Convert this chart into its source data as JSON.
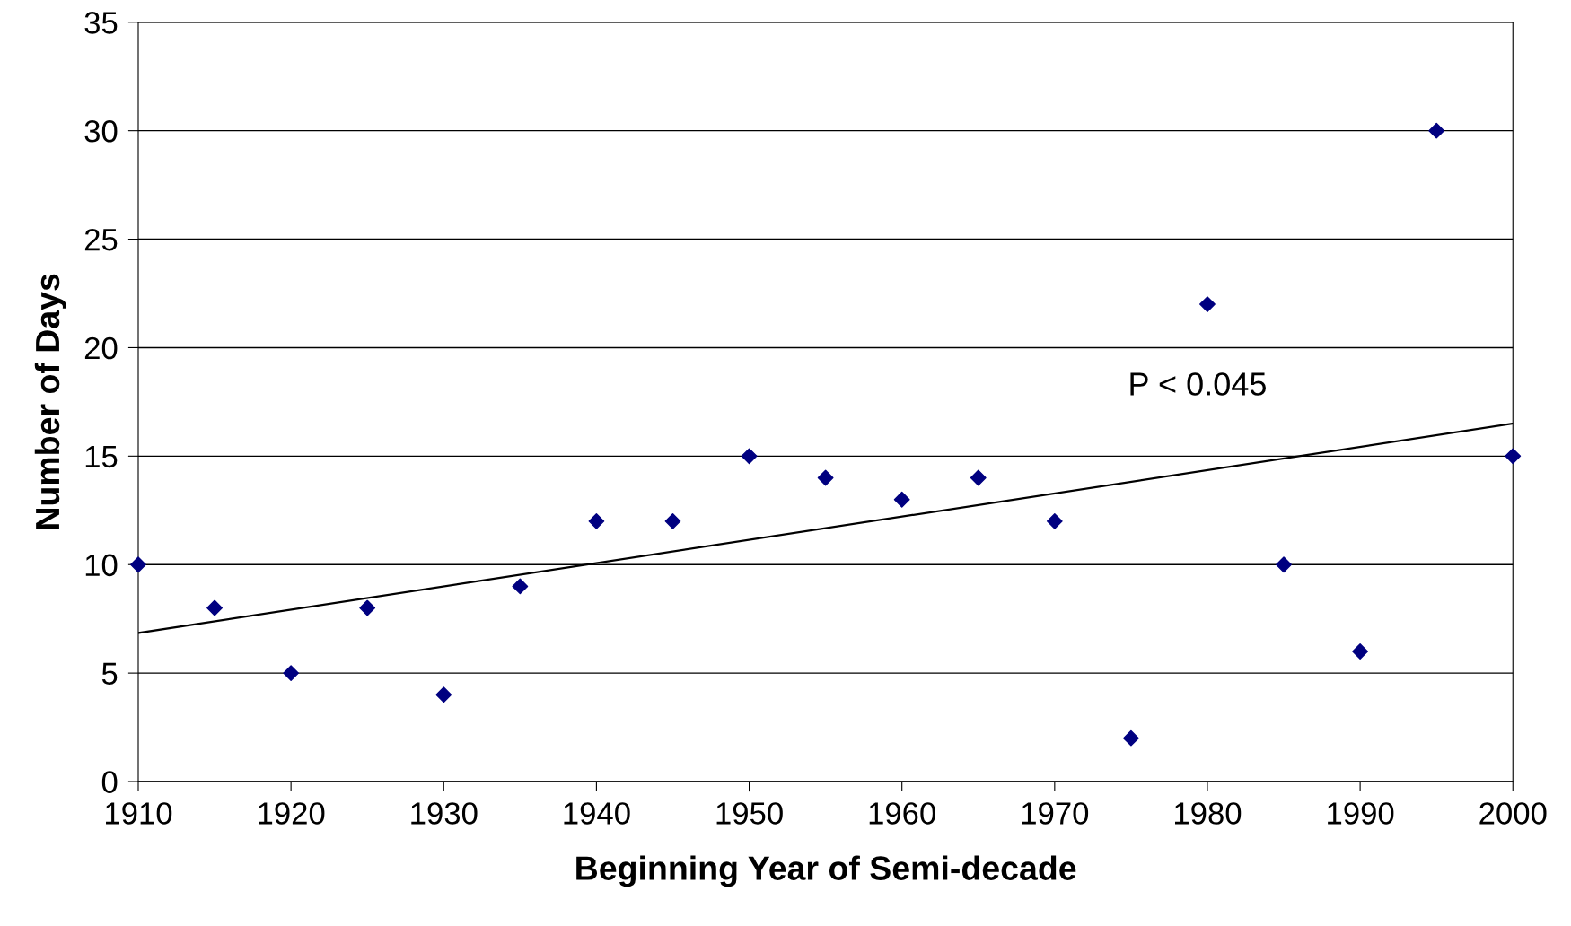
{
  "chart_data": {
    "type": "scatter",
    "xlabel": "Beginning Year of Semi-decade",
    "ylabel": "Number of Days",
    "x": [
      1910,
      1915,
      1920,
      1925,
      1930,
      1935,
      1940,
      1945,
      1950,
      1955,
      1960,
      1965,
      1970,
      1975,
      1980,
      1985,
      1990,
      1995,
      2000
    ],
    "series": [
      {
        "color": "#000080",
        "marker": "diamond",
        "values": [
          10,
          8,
          5,
          8,
          4,
          9,
          12,
          12,
          15,
          14,
          13,
          14,
          12,
          2,
          22,
          10,
          6,
          30,
          15
        ]
      },
      {
        "type": "line",
        "color": "#000000",
        "x": [
          1910,
          2000
        ],
        "values": [
          6.85,
          16.5
        ]
      }
    ],
    "annotations": [
      "P < 0.045"
    ],
    "xlim": [
      1910,
      2000
    ],
    "xticks": [
      1910,
      1920,
      1930,
      1940,
      1950,
      1960,
      1970,
      1980,
      1990,
      2000
    ],
    "ylim": [
      0,
      35
    ],
    "yticks": [
      0,
      5,
      10,
      15,
      20,
      25,
      30,
      35
    ],
    "grid": "y",
    "legend": false
  }
}
